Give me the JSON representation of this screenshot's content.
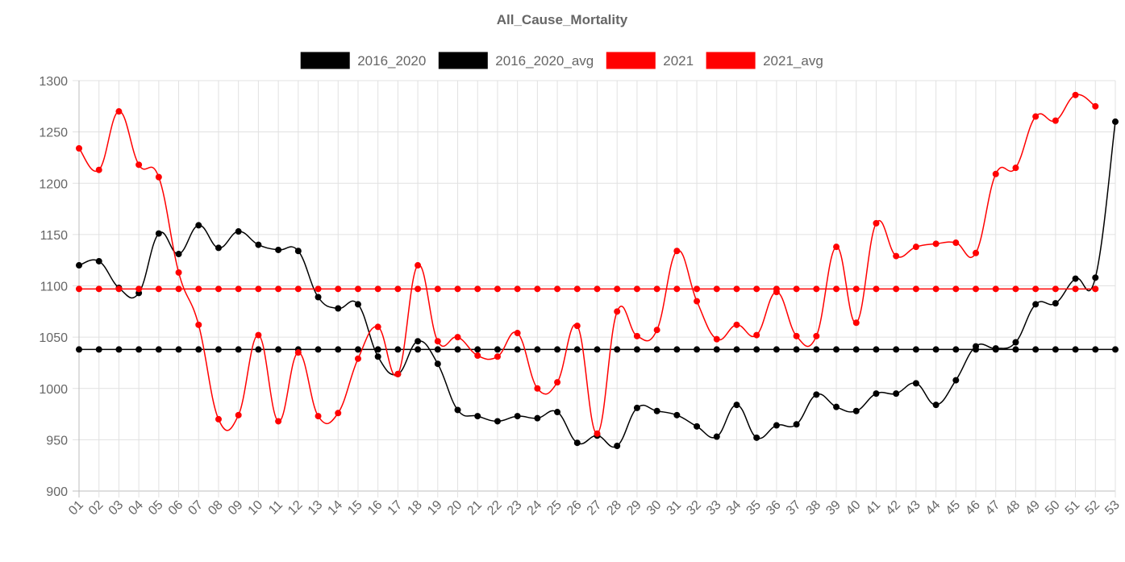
{
  "chart_data": {
    "type": "line",
    "title": "All_Cause_Mortality",
    "xlabel": "",
    "ylabel": "",
    "ylim": [
      900,
      1300
    ],
    "yticks": [
      900,
      950,
      1000,
      1050,
      1100,
      1150,
      1200,
      1250,
      1300
    ],
    "grid": true,
    "legend_position": "top",
    "categories": [
      "01",
      "02",
      "03",
      "04",
      "05",
      "06",
      "07",
      "08",
      "09",
      "10",
      "11",
      "12",
      "13",
      "14",
      "15",
      "16",
      "17",
      "18",
      "19",
      "20",
      "21",
      "22",
      "23",
      "24",
      "25",
      "26",
      "27",
      "28",
      "29",
      "30",
      "31",
      "32",
      "33",
      "34",
      "35",
      "36",
      "37",
      "38",
      "39",
      "40",
      "41",
      "42",
      "43",
      "44",
      "45",
      "46",
      "47",
      "48",
      "49",
      "50",
      "51",
      "52",
      "53"
    ],
    "series": [
      {
        "name": "2016_2020",
        "color": "#000000",
        "values": [
          1120,
          1124,
          1098,
          1093,
          1151,
          1131,
          1159,
          1137,
          1153,
          1140,
          1135,
          1134,
          1089,
          1078,
          1082,
          1031,
          1014,
          1046,
          1024,
          979,
          973,
          968,
          973,
          971,
          977,
          947,
          954,
          944,
          981,
          978,
          974,
          963,
          953,
          984,
          952,
          964,
          965,
          994,
          982,
          978,
          995,
          995,
          1005,
          984,
          1008,
          1041,
          1039,
          1045,
          1082,
          1083,
          1107,
          1108,
          1260
        ]
      },
      {
        "name": "2016_2020_avg",
        "color": "#000000",
        "values": [
          1038,
          1038,
          1038,
          1038,
          1038,
          1038,
          1038,
          1038,
          1038,
          1038,
          1038,
          1038,
          1038,
          1038,
          1038,
          1038,
          1038,
          1038,
          1038,
          1038,
          1038,
          1038,
          1038,
          1038,
          1038,
          1038,
          1038,
          1038,
          1038,
          1038,
          1038,
          1038,
          1038,
          1038,
          1038,
          1038,
          1038,
          1038,
          1038,
          1038,
          1038,
          1038,
          1038,
          1038,
          1038,
          1038,
          1038,
          1038,
          1038,
          1038,
          1038,
          1038,
          1038
        ]
      },
      {
        "name": "2021",
        "color": "#ff0000",
        "values": [
          1234,
          1213,
          1270,
          1218,
          1206,
          1113,
          1062,
          970,
          974,
          1052,
          968,
          1035,
          973,
          976,
          1029,
          1060,
          1014,
          1120,
          1046,
          1050,
          1032,
          1031,
          1054,
          1000,
          1006,
          1061,
          956,
          1075,
          1051,
          1057,
          1134,
          1085,
          1048,
          1062,
          1052,
          1094,
          1051,
          1051,
          1138,
          1064,
          1161,
          1129,
          1138,
          1141,
          1142,
          1132,
          1209,
          1215,
          1265,
          1261,
          1286,
          1275,
          null
        ]
      },
      {
        "name": "2021_avg",
        "color": "#ff0000",
        "values": [
          1097,
          1097,
          1097,
          1097,
          1097,
          1097,
          1097,
          1097,
          1097,
          1097,
          1097,
          1097,
          1097,
          1097,
          1097,
          1097,
          1097,
          1097,
          1097,
          1097,
          1097,
          1097,
          1097,
          1097,
          1097,
          1097,
          1097,
          1097,
          1097,
          1097,
          1097,
          1097,
          1097,
          1097,
          1097,
          1097,
          1097,
          1097,
          1097,
          1097,
          1097,
          1097,
          1097,
          1097,
          1097,
          1097,
          1097,
          1097,
          1097,
          1097,
          1097,
          1097,
          null
        ]
      }
    ]
  }
}
